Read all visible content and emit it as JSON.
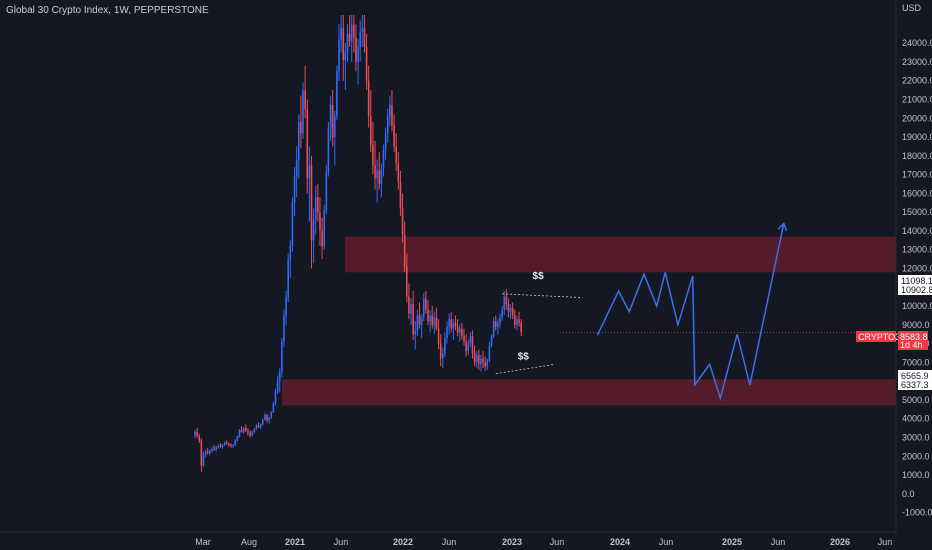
{
  "header": {
    "title": "Global 30 Crypto Index, 1W, PEPPERSTONE"
  },
  "chart_data": {
    "type": "candlestick",
    "currency_label": "USD",
    "colors": {
      "up": "#2f6bff",
      "down": "#f04a52",
      "zone": "#6e1f2c",
      "projection": "#3d6fe6",
      "background": "#141823"
    },
    "y_ticks": [
      "-1000.0",
      "0.0",
      "1000.0",
      "2000.0",
      "3000.0",
      "4000.0",
      "5000.0",
      "6000.0",
      "7000.0",
      "8000.0",
      "9000.0",
      "10000.0",
      "11000.0",
      "12000.0",
      "13000.0",
      "14000.0",
      "15000.0",
      "16000.0",
      "17000.0",
      "18000.0",
      "19000.0",
      "20000.0",
      "21000.0",
      "22000.0",
      "23000.0",
      "24000.0"
    ],
    "ylim": [
      -1500,
      25500
    ],
    "x_ticks": [
      {
        "label": "Mar",
        "bold": false
      },
      {
        "label": "Aug",
        "bold": false
      },
      {
        "label": "2021",
        "bold": true
      },
      {
        "label": "Jun",
        "bold": false
      },
      {
        "label": "2022",
        "bold": true
      },
      {
        "label": "Jun",
        "bold": false
      },
      {
        "label": "2023",
        "bold": true
      },
      {
        "label": "Jun",
        "bold": false
      },
      {
        "label": "2024",
        "bold": true
      },
      {
        "label": "Jun",
        "bold": false
      },
      {
        "label": "2025",
        "bold": true
      },
      {
        "label": "Jun",
        "bold": false
      },
      {
        "label": "2026",
        "bold": true
      },
      {
        "label": "Jun",
        "bold": false
      }
    ],
    "price_tags": [
      {
        "value": "11098.1"
      },
      {
        "value": "10902.8"
      },
      {
        "value": "6565.9"
      },
      {
        "value": "6337.3"
      }
    ],
    "current": {
      "symbol": "CRYPTO30",
      "price": "8583.8",
      "countdown": "1d 4h",
      "value": 8583.8
    },
    "zones": [
      {
        "low": 11800,
        "high": 13700
      },
      {
        "low": 4700,
        "high": 6100
      }
    ],
    "annotations": [
      {
        "text": "$$",
        "x_index": 162,
        "value": 11450
      },
      {
        "text": "$$",
        "x_index": 155,
        "value": 7150
      }
    ],
    "liquidity_lines": [
      {
        "from": [
          145,
          10650
        ],
        "to": [
          183,
          10450
        ]
      },
      {
        "from": [
          142,
          6400
        ],
        "to": [
          170,
          6900
        ]
      }
    ],
    "projection": [
      [
        190,
        8450
      ],
      [
        200,
        10800
      ],
      [
        205,
        9700
      ],
      [
        212,
        11700
      ],
      [
        218,
        10000
      ],
      [
        222,
        11800
      ],
      [
        228,
        9000
      ],
      [
        235,
        11600
      ],
      [
        236,
        5800
      ],
      [
        243,
        6900
      ],
      [
        248,
        5100
      ],
      [
        256,
        8500
      ],
      [
        262,
        5800
      ],
      [
        278,
        14400
      ]
    ],
    "candles_ohlc_weekly_from_2020_02": [
      [
        3100,
        3420,
        2950,
        3300
      ],
      [
        3300,
        3520,
        3000,
        3080
      ],
      [
        3080,
        3200,
        2700,
        2850
      ],
      [
        2850,
        2950,
        1180,
        1500
      ],
      [
        1500,
        2250,
        1420,
        2100
      ],
      [
        2100,
        2350,
        1950,
        2250
      ],
      [
        2250,
        2450,
        2100,
        2180
      ],
      [
        2180,
        2380,
        2050,
        2300
      ],
      [
        2300,
        2500,
        2200,
        2400
      ],
      [
        2400,
        2600,
        2300,
        2350
      ],
      [
        2350,
        2550,
        2250,
        2480
      ],
      [
        2480,
        2650,
        2400,
        2550
      ],
      [
        2550,
        2700,
        2450,
        2500
      ],
      [
        2500,
        2650,
        2400,
        2620
      ],
      [
        2620,
        2800,
        2550,
        2700
      ],
      [
        2700,
        2850,
        2600,
        2650
      ],
      [
        2650,
        2750,
        2500,
        2600
      ],
      [
        2600,
        2700,
        2450,
        2550
      ],
      [
        2550,
        2650,
        2450,
        2600
      ],
      [
        2600,
        2900,
        2550,
        2850
      ],
      [
        2850,
        3100,
        2800,
        3050
      ],
      [
        3050,
        3450,
        3000,
        3400
      ],
      [
        3400,
        3600,
        3250,
        3300
      ],
      [
        3300,
        3550,
        3200,
        3500
      ],
      [
        3500,
        3700,
        3300,
        3350
      ],
      [
        3350,
        3500,
        3100,
        3250
      ],
      [
        3250,
        3400,
        3000,
        3100
      ],
      [
        3100,
        3350,
        3050,
        3300
      ],
      [
        3300,
        3500,
        3200,
        3450
      ],
      [
        3450,
        3700,
        3400,
        3650
      ],
      [
        3650,
        3800,
        3500,
        3550
      ],
      [
        3550,
        3750,
        3450,
        3700
      ],
      [
        3700,
        4000,
        3650,
        3950
      ],
      [
        3950,
        4300,
        3900,
        4200
      ],
      [
        4200,
        4250,
        3800,
        3900
      ],
      [
        3900,
        4100,
        3700,
        4050
      ],
      [
        4050,
        4400,
        4000,
        4350
      ],
      [
        4350,
        4900,
        4300,
        4800
      ],
      [
        4800,
        5600,
        4700,
        5450
      ],
      [
        5450,
        6300,
        5300,
        6000
      ],
      [
        6000,
        6700,
        5400,
        6500
      ],
      [
        6500,
        8300,
        6200,
        8100
      ],
      [
        8100,
        9800,
        7800,
        9500
      ],
      [
        9500,
        10800,
        9000,
        10500
      ],
      [
        10500,
        12800,
        10200,
        12500
      ],
      [
        12500,
        13500,
        11500,
        13200
      ],
      [
        13200,
        15800,
        12900,
        15500
      ],
      [
        15500,
        17400,
        14800,
        16900
      ],
      [
        16900,
        18500,
        15800,
        17800
      ],
      [
        17800,
        20200,
        16800,
        19800
      ],
      [
        19800,
        21200,
        18400,
        19200
      ],
      [
        19200,
        21900,
        18900,
        21500
      ],
      [
        21500,
        22800,
        20000,
        20500
      ],
      [
        20500,
        21000,
        16000,
        16800
      ],
      [
        16800,
        18500,
        14500,
        17500
      ],
      [
        17500,
        18000,
        12000,
        13500
      ],
      [
        13500,
        15200,
        12300,
        14600
      ],
      [
        14600,
        16400,
        13800,
        15800
      ],
      [
        15800,
        16500,
        14500,
        15000
      ],
      [
        15000,
        15800,
        13200,
        14000
      ],
      [
        14000,
        14700,
        12500,
        13200
      ],
      [
        13200,
        15400,
        13000,
        15100
      ],
      [
        15100,
        17500,
        14900,
        17100
      ],
      [
        17100,
        19800,
        16900,
        19500
      ],
      [
        19500,
        21200,
        18800,
        20700
      ],
      [
        20700,
        21500,
        18500,
        19000
      ],
      [
        19000,
        20400,
        17500,
        20100
      ],
      [
        20100,
        22800,
        19900,
        22500
      ],
      [
        22500,
        25000,
        22000,
        24200
      ],
      [
        24200,
        25500,
        23500,
        24800
      ],
      [
        24800,
        25500,
        22000,
        23100
      ],
      [
        23100,
        24000,
        21500,
        23500
      ],
      [
        23500,
        25000,
        23000,
        24500
      ],
      [
        24500,
        25500,
        23800,
        24100
      ],
      [
        24100,
        25500,
        23000,
        25000
      ],
      [
        25000,
        25500,
        23500,
        24300
      ],
      [
        24300,
        25000,
        22500,
        23000
      ],
      [
        23000,
        24200,
        21800,
        23800
      ],
      [
        23800,
        25200,
        23000,
        24600
      ],
      [
        24600,
        25500,
        23800,
        24800
      ],
      [
        24800,
        25500,
        23500,
        23800
      ],
      [
        23800,
        24500,
        21500,
        22000
      ],
      [
        22000,
        22800,
        19500,
        20100
      ],
      [
        20100,
        21500,
        18200,
        18600
      ],
      [
        18600,
        19800,
        17000,
        17500
      ],
      [
        17500,
        18800,
        16200,
        16800
      ],
      [
        16800,
        17800,
        15500,
        17200
      ],
      [
        17200,
        18200,
        16200,
        16500
      ],
      [
        16500,
        17600,
        15800,
        17300
      ],
      [
        17300,
        18600,
        16900,
        18300
      ],
      [
        18300,
        19500,
        17800,
        19200
      ],
      [
        19200,
        20500,
        18700,
        20100
      ],
      [
        20100,
        21200,
        19600,
        20700
      ],
      [
        20700,
        21500,
        19300,
        19600
      ],
      [
        19600,
        20200,
        18200,
        18500
      ],
      [
        18500,
        19200,
        17200,
        17600
      ],
      [
        17600,
        18200,
        16200,
        16600
      ],
      [
        16600,
        17200,
        14800,
        15200
      ],
      [
        15200,
        16000,
        13400,
        13800
      ],
      [
        13800,
        14500,
        11800,
        12100
      ],
      [
        12100,
        12800,
        10200,
        10500
      ],
      [
        10500,
        11200,
        9300,
        9600
      ],
      [
        9600,
        10400,
        9000,
        10100
      ],
      [
        10100,
        10800,
        8200,
        8500
      ],
      [
        8500,
        9200,
        7700,
        8700
      ],
      [
        8700,
        9800,
        8400,
        9500
      ],
      [
        9500,
        10200,
        8800,
        9000
      ],
      [
        9000,
        9600,
        8300,
        9400
      ],
      [
        9400,
        10700,
        9200,
        10400
      ],
      [
        10400,
        10800,
        9600,
        9800
      ],
      [
        9800,
        10300,
        9000,
        9200
      ],
      [
        9200,
        9800,
        8600,
        9500
      ],
      [
        9500,
        10000,
        8800,
        9000
      ],
      [
        9000,
        9700,
        8500,
        9400
      ],
      [
        9400,
        9900,
        8700,
        8800
      ],
      [
        8800,
        9300,
        7700,
        8000
      ],
      [
        8000,
        8500,
        6800,
        7200
      ],
      [
        7200,
        7800,
        6700,
        7500
      ],
      [
        7500,
        8600,
        7300,
        8300
      ],
      [
        8300,
        9200,
        8000,
        8900
      ],
      [
        8900,
        9600,
        8500,
        9300
      ],
      [
        9300,
        9700,
        8600,
        8800
      ],
      [
        8800,
        9300,
        8200,
        9100
      ],
      [
        9100,
        9500,
        8700,
        8900
      ],
      [
        8900,
        9300,
        8400,
        8600
      ],
      [
        8600,
        9000,
        8100,
        8800
      ],
      [
        8800,
        9100,
        8200,
        8400
      ],
      [
        8400,
        8800,
        7900,
        8100
      ],
      [
        8100,
        8500,
        7300,
        7600
      ],
      [
        7600,
        8200,
        7400,
        8000
      ],
      [
        8000,
        8600,
        7800,
        8400
      ],
      [
        8400,
        8700,
        7200,
        7500
      ],
      [
        7500,
        7900,
        6800,
        7000
      ],
      [
        7000,
        7600,
        6700,
        7400
      ],
      [
        7400,
        7700,
        6600,
        6900
      ],
      [
        6900,
        7400,
        6500,
        7200
      ],
      [
        7200,
        7600,
        6700,
        7000
      ],
      [
        7000,
        7300,
        6550,
        6800
      ],
      [
        6800,
        7200,
        6600,
        7100
      ],
      [
        7100,
        8100,
        7000,
        7900
      ],
      [
        7900,
        8500,
        7800,
        8400
      ],
      [
        8400,
        9400,
        8300,
        9200
      ],
      [
        9200,
        9500,
        8700,
        8900
      ],
      [
        8900,
        9300,
        8500,
        9100
      ],
      [
        9100,
        9600,
        8800,
        9400
      ],
      [
        9400,
        10000,
        9200,
        9800
      ],
      [
        9800,
        10800,
        9500,
        10500
      ],
      [
        10500,
        10900,
        9800,
        10100
      ],
      [
        10100,
        10400,
        9400,
        9700
      ],
      [
        9700,
        10100,
        9300,
        9900
      ],
      [
        9900,
        10200,
        9300,
        9500
      ],
      [
        9500,
        9800,
        8800,
        9000
      ],
      [
        9000,
        9500,
        8700,
        9300
      ],
      [
        9300,
        9700,
        8900,
        9100
      ],
      [
        9100,
        9300,
        8400,
        8600
      ]
    ]
  }
}
